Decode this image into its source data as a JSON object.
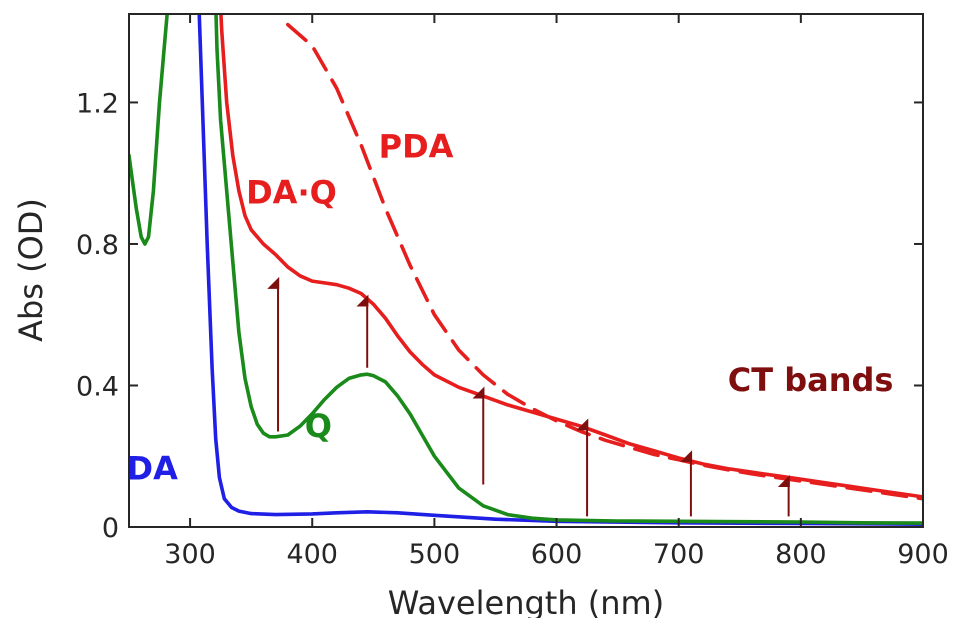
{
  "chart_data": {
    "type": "line",
    "title": "",
    "xlabel": "Wavelength (nm)",
    "ylabel": "Abs (OD)",
    "xlim": [
      250,
      900
    ],
    "ylim": [
      0,
      1.45
    ],
    "xticks": [
      300,
      400,
      500,
      600,
      700,
      800,
      900
    ],
    "yticks": [
      0,
      0.4,
      0.8,
      1.2
    ],
    "ytick_labels": [
      "0",
      "0.4",
      "0.8",
      "1.2"
    ],
    "grid": false,
    "legend": "none",
    "series": [
      {
        "name": "DA",
        "color": "#1f1fe6",
        "dash": "solid",
        "x": [
          306,
          310,
          314,
          318,
          321,
          324,
          328,
          334,
          340,
          350,
          370,
          400,
          420,
          445,
          470,
          500,
          550,
          600,
          700,
          800,
          900
        ],
        "y": [
          1.6,
          1.2,
          0.8,
          0.45,
          0.25,
          0.14,
          0.08,
          0.055,
          0.045,
          0.038,
          0.035,
          0.037,
          0.04,
          0.043,
          0.04,
          0.033,
          0.022,
          0.016,
          0.012,
          0.01,
          0.008
        ]
      },
      {
        "name": "Q",
        "color": "#1a8a1a",
        "dash": "solid",
        "x": [
          250,
          252,
          256,
          260,
          263,
          266,
          270,
          275,
          280,
          285,
          320,
          322,
          325,
          330,
          335,
          340,
          345,
          350,
          355,
          360,
          365,
          370,
          380,
          390,
          400,
          410,
          420,
          430,
          440,
          445,
          450,
          460,
          470,
          480,
          490,
          500,
          520,
          540,
          560,
          580,
          600,
          650,
          700,
          750,
          800,
          850,
          900
        ],
        "y": [
          1.05,
          1.0,
          0.9,
          0.82,
          0.8,
          0.82,
          0.95,
          1.2,
          1.4,
          1.6,
          1.6,
          1.35,
          1.15,
          0.95,
          0.75,
          0.55,
          0.42,
          0.34,
          0.29,
          0.265,
          0.255,
          0.255,
          0.26,
          0.285,
          0.32,
          0.36,
          0.395,
          0.42,
          0.43,
          0.432,
          0.428,
          0.41,
          0.37,
          0.32,
          0.26,
          0.2,
          0.11,
          0.06,
          0.035,
          0.025,
          0.02,
          0.017,
          0.016,
          0.015,
          0.014,
          0.012,
          0.011
        ]
      },
      {
        "name": "DA·Q",
        "color": "#e61e1e",
        "dash": "solid",
        "x": [
          323,
          326,
          330,
          335,
          340,
          345,
          350,
          360,
          370,
          380,
          390,
          400,
          410,
          420,
          430,
          440,
          450,
          460,
          470,
          480,
          490,
          500,
          520,
          540,
          560,
          580,
          600,
          620,
          640,
          660,
          680,
          700,
          720,
          740,
          760,
          780,
          800,
          820,
          840,
          860,
          880,
          900
        ],
        "y": [
          1.6,
          1.4,
          1.2,
          1.05,
          0.95,
          0.88,
          0.84,
          0.8,
          0.77,
          0.735,
          0.71,
          0.695,
          0.69,
          0.685,
          0.675,
          0.66,
          0.63,
          0.59,
          0.54,
          0.495,
          0.46,
          0.43,
          0.395,
          0.37,
          0.345,
          0.325,
          0.305,
          0.285,
          0.26,
          0.235,
          0.215,
          0.195,
          0.178,
          0.165,
          0.155,
          0.145,
          0.135,
          0.125,
          0.115,
          0.105,
          0.095,
          0.085
        ]
      },
      {
        "name": "PDA",
        "color": "#e61e1e",
        "dash": "dashed",
        "x": [
          380,
          400,
          420,
          440,
          460,
          480,
          500,
          520,
          540,
          560,
          580,
          600,
          620,
          640,
          660,
          680,
          700,
          720,
          740,
          760,
          780,
          800,
          820,
          840,
          860,
          880,
          900
        ],
        "y": [
          1.42,
          1.36,
          1.24,
          1.08,
          0.9,
          0.74,
          0.6,
          0.5,
          0.43,
          0.375,
          0.335,
          0.3,
          0.27,
          0.245,
          0.225,
          0.205,
          0.19,
          0.175,
          0.162,
          0.15,
          0.14,
          0.13,
          0.12,
          0.11,
          0.1,
          0.09,
          0.08
        ]
      }
    ],
    "annotations": {
      "labels": [
        {
          "text": "PDA",
          "x": 485,
          "y": 1.07,
          "color": "#e61e1e"
        },
        {
          "text": "DA·Q",
          "x": 383,
          "y": 0.94,
          "color": "#e61e1e"
        },
        {
          "text": "CT bands",
          "x": 808,
          "y": 0.41,
          "color": "#7f0f0f"
        },
        {
          "text": "Q",
          "x": 405,
          "y": 0.28,
          "color": "#1a8a1a"
        },
        {
          "text": "DA",
          "x": 269,
          "y": 0.16,
          "color": "#1f1fe6"
        }
      ],
      "arrows": [
        {
          "x": 372,
          "y_from": 0.27,
          "y_to": 0.69
        },
        {
          "x": 445,
          "y_from": 0.45,
          "y_to": 0.64
        },
        {
          "x": 540,
          "y_from": 0.12,
          "y_to": 0.38
        },
        {
          "x": 625,
          "y_from": 0.03,
          "y_to": 0.29
        },
        {
          "x": 710,
          "y_from": 0.03,
          "y_to": 0.2
        },
        {
          "x": 790,
          "y_from": 0.03,
          "y_to": 0.13
        }
      ],
      "arrow_color": "#7f0f0f"
    }
  }
}
